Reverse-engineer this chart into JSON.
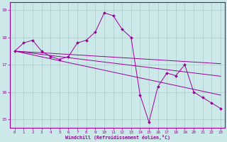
{
  "xlabel": "Windchill (Refroidissement éolien,°C)",
  "xlim": [
    -0.5,
    23.5
  ],
  "ylim": [
    14.7,
    19.3
  ],
  "yticks": [
    15,
    16,
    17,
    18,
    19
  ],
  "xticks": [
    0,
    1,
    2,
    3,
    4,
    5,
    6,
    7,
    8,
    9,
    10,
    11,
    12,
    13,
    14,
    15,
    16,
    17,
    18,
    19,
    20,
    21,
    22,
    23
  ],
  "bg_color": "#cce8e8",
  "grid_color": "#aacccc",
  "line_color": "#990099",
  "series": {
    "main": [
      17.5,
      17.8,
      17.9,
      17.5,
      17.3,
      17.2,
      17.3,
      17.8,
      17.9,
      18.2,
      18.9,
      18.8,
      18.3,
      18.0,
      15.9,
      14.9,
      16.2,
      16.7,
      16.6,
      17.0,
      16.0,
      15.8,
      15.6,
      15.4
    ],
    "trend1": [
      17.5,
      17.43,
      17.36,
      17.29,
      17.22,
      17.15,
      17.08,
      17.01,
      16.94,
      16.87,
      16.8,
      16.73,
      16.66,
      16.59,
      16.52,
      16.45,
      16.38,
      16.31,
      16.24,
      16.17,
      16.1,
      16.03,
      15.96,
      15.89
    ],
    "trend2": [
      17.5,
      17.46,
      17.42,
      17.38,
      17.34,
      17.3,
      17.26,
      17.22,
      17.18,
      17.14,
      17.1,
      17.06,
      17.02,
      16.98,
      16.94,
      16.9,
      16.86,
      16.82,
      16.78,
      16.74,
      16.7,
      16.66,
      16.62,
      16.58
    ],
    "trend3": [
      17.5,
      17.48,
      17.46,
      17.44,
      17.42,
      17.4,
      17.38,
      17.36,
      17.34,
      17.32,
      17.3,
      17.28,
      17.26,
      17.24,
      17.22,
      17.2,
      17.18,
      17.16,
      17.14,
      17.12,
      17.1,
      17.08,
      17.06,
      17.04
    ]
  }
}
